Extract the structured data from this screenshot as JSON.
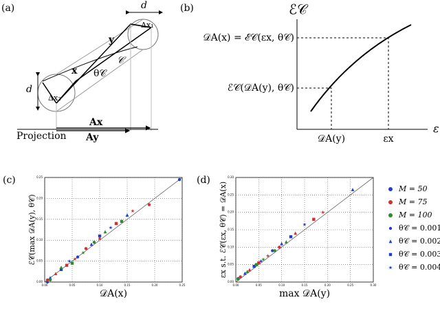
{
  "figure": {
    "panel_labels": [
      "(a)",
      "(b)",
      "(c)",
      "(d)"
    ],
    "diagram_a": {
      "d_top": "d",
      "dx1": "Δx₁",
      "y": "y",
      "curve": "𝒞",
      "x": "x",
      "theta": "θ𝒞",
      "d_left": "d",
      "dx2": "Δx₂",
      "ax": "Ax",
      "projection": "Projection",
      "ay": "Ay"
    },
    "diagram_b": {
      "y_axis": "ℰ𝒞",
      "upper": "𝒟A(x) = ℰ𝒞(εx, θ𝒞)",
      "lower": "ℰ𝒞(𝒟A(y), θ𝒞)",
      "x1": "𝒟A(y)",
      "x2": "εx",
      "x_axis": "ε"
    }
  },
  "chart_data": [
    {
      "type": "scatter",
      "x_label": "𝒟A(x)",
      "y_label": "ℰ𝒞(max 𝒟A(y), θ𝒞)",
      "grid": true,
      "xlim": [
        0,
        0.25
      ],
      "ylim": [
        0,
        0.25
      ],
      "xticks": [
        {
          "value": 0,
          "label": "0.00"
        },
        {
          "value": 0.05,
          "label": "0.05"
        },
        {
          "value": 0.1,
          "label": "0.10"
        },
        {
          "value": 0.15,
          "label": "0.15"
        },
        {
          "value": 0.2,
          "label": "0.20"
        },
        {
          "value": 0.25,
          "label": "0.25"
        }
      ],
      "yticks": [
        {
          "value": 0,
          "label": "0.00"
        },
        {
          "value": 0.05,
          "label": "0.05"
        },
        {
          "value": 0.1,
          "label": "0.10"
        },
        {
          "value": 0.15,
          "label": "0.15"
        },
        {
          "value": 0.2,
          "label": "0.20"
        },
        {
          "value": 0.25,
          "label": "0.25"
        }
      ],
      "series": [
        {
          "name": "M = 50",
          "color": "#1f3fcf",
          "x": [
            0.005,
            0.01,
            0.03,
            0.045,
            0.06,
            0.085,
            0.1,
            0.12,
            0.15,
            0.245
          ],
          "values": [
            0.0,
            0.01,
            0.03,
            0.05,
            0.06,
            0.09,
            0.11,
            0.13,
            0.16,
            0.245
          ],
          "markers": [
            "circle",
            "triangle",
            "square",
            "star",
            "circle",
            "triangle",
            "square",
            "star",
            "triangle",
            "circle"
          ]
        },
        {
          "name": "M = 75",
          "color": "#d43030",
          "x": [
            0.005,
            0.02,
            0.04,
            0.055,
            0.075,
            0.1,
            0.13,
            0.16,
            0.19
          ],
          "values": [
            0.005,
            0.02,
            0.04,
            0.055,
            0.08,
            0.105,
            0.14,
            0.17,
            0.185
          ],
          "markers": [
            "circle",
            "triangle",
            "square",
            "star",
            "circle",
            "triangle",
            "square",
            "star",
            "circle"
          ]
        },
        {
          "name": "M = 100",
          "color": "#2e8b2e",
          "x": [
            0.01,
            0.03,
            0.05,
            0.07,
            0.09,
            0.11,
            0.14
          ],
          "values": [
            0.005,
            0.035,
            0.045,
            0.07,
            0.095,
            0.12,
            0.145
          ],
          "markers": [
            "circle",
            "triangle",
            "square",
            "star",
            "circle",
            "triangle",
            "square"
          ]
        }
      ]
    },
    {
      "type": "scatter",
      "x_label": "max 𝒟A(y)",
      "y_label": "εx s.t. ℰ𝒞(εx, θ𝒞) = 𝒟A(x)",
      "grid": true,
      "xlim": [
        0,
        0.3
      ],
      "ylim": [
        0,
        0.3
      ],
      "xticks": [
        {
          "value": 0,
          "label": "0.00"
        },
        {
          "value": 0.05,
          "label": "0.05"
        },
        {
          "value": 0.1,
          "label": "0.10"
        },
        {
          "value": 0.15,
          "label": "0.15"
        },
        {
          "value": 0.2,
          "label": "0.20"
        },
        {
          "value": 0.25,
          "label": "0.25"
        },
        {
          "value": 0.3,
          "label": "0.30"
        }
      ],
      "yticks": [
        {
          "value": 0,
          "label": "0.00"
        },
        {
          "value": 0.05,
          "label": "0.05"
        },
        {
          "value": 0.1,
          "label": "0.10"
        },
        {
          "value": 0.15,
          "label": "0.15"
        },
        {
          "value": 0.2,
          "label": "0.20"
        },
        {
          "value": 0.25,
          "label": "0.25"
        },
        {
          "value": 0.3,
          "label": "0.30"
        }
      ],
      "series": [
        {
          "name": "M = 50",
          "color": "#1f3fcf",
          "x": [
            0.005,
            0.02,
            0.04,
            0.055,
            0.08,
            0.1,
            0.12,
            0.15,
            0.255
          ],
          "values": [
            0.01,
            0.025,
            0.045,
            0.06,
            0.09,
            0.11,
            0.13,
            0.165,
            0.265
          ],
          "markers": [
            "circle",
            "triangle",
            "square",
            "star",
            "circle",
            "triangle",
            "square",
            "star",
            "triangle"
          ]
        },
        {
          "name": "M = 75",
          "color": "#d43030",
          "x": [
            0.01,
            0.03,
            0.05,
            0.07,
            0.095,
            0.13,
            0.17,
            0.19
          ],
          "values": [
            0.015,
            0.035,
            0.055,
            0.075,
            0.1,
            0.14,
            0.18,
            0.2
          ],
          "markers": [
            "circle",
            "triangle",
            "square",
            "star",
            "circle",
            "triangle",
            "square",
            "star"
          ]
        },
        {
          "name": "M = 100",
          "color": "#2e8b2e",
          "x": [
            0.005,
            0.025,
            0.045,
            0.06,
            0.085,
            0.11
          ],
          "values": [
            0.008,
            0.03,
            0.05,
            0.065,
            0.09,
            0.115
          ],
          "markers": [
            "circle",
            "triangle",
            "square",
            "star",
            "circle",
            "triangle"
          ]
        }
      ],
      "marker_legend": [
        {
          "name": "θ𝒞 = 0.001",
          "marker": "circle"
        },
        {
          "name": "θ𝒞 = 0.002",
          "marker": "triangle"
        },
        {
          "name": "θ𝒞 = 0.003",
          "marker": "square"
        },
        {
          "name": "θ𝒞 = 0.004",
          "marker": "star"
        }
      ]
    }
  ]
}
